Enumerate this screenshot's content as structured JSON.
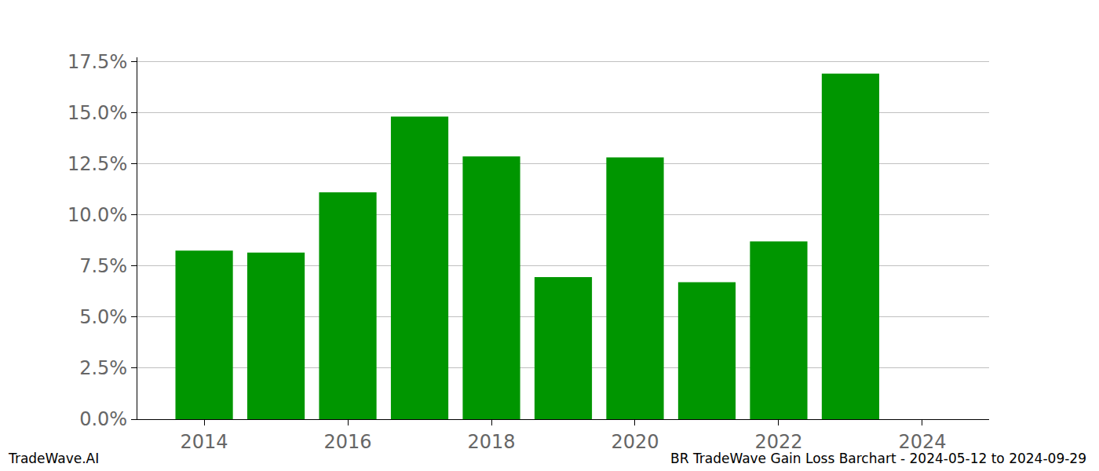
{
  "chart_data": {
    "type": "bar",
    "x": [
      2014,
      2015,
      2016,
      2017,
      2018,
      2019,
      2020,
      2021,
      2022,
      2023
    ],
    "values": [
      8.25,
      8.15,
      11.1,
      14.8,
      12.85,
      6.95,
      12.8,
      6.7,
      8.7,
      16.9
    ],
    "color": "#009600",
    "xlim": [
      2013.07,
      2024.93
    ],
    "xticks": [
      2014,
      2016,
      2018,
      2020,
      2022,
      2024
    ],
    "ylim": [
      0,
      17.7
    ],
    "yticks": [
      {
        "value": 0,
        "label": "0.0%"
      },
      {
        "value": 2.5,
        "label": "2.5%"
      },
      {
        "value": 5,
        "label": "5.0%"
      },
      {
        "value": 7.5,
        "label": "7.5%"
      },
      {
        "value": 10,
        "label": "10.0%"
      },
      {
        "value": 12.5,
        "label": "12.5%"
      },
      {
        "value": 15,
        "label": "15.0%"
      },
      {
        "value": 17.5,
        "label": "17.5%"
      }
    ],
    "grid": true,
    "annotations": [
      "TradeWave.AI",
      "BR TradeWave Gain Loss Barchart - 2024-05-12 to 2024-09-29"
    ]
  }
}
